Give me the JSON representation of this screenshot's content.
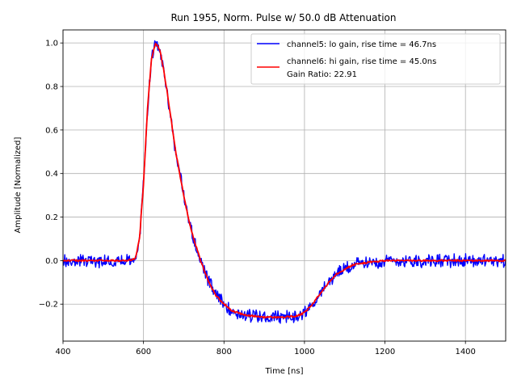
{
  "chart_data": {
    "type": "line",
    "title": "Run 1955, Norm. Pulse w/ 50.0 dB Attenuation",
    "xlabel": "Time [ns]",
    "ylabel": "Amplitude [Normalized]",
    "xlim": [
      400,
      1500
    ],
    "ylim": [
      -0.37,
      1.06
    ],
    "grid": true,
    "legend_position": "top-right",
    "x_ticks": [
      400,
      600,
      800,
      1000,
      1200,
      1400
    ],
    "x_tick_labels": [
      "400",
      "600",
      "800",
      "1000",
      "1200",
      "1400"
    ],
    "y_ticks": [
      -0.2,
      0.0,
      0.2,
      0.4,
      0.6,
      0.8,
      1.0
    ],
    "y_tick_labels": [
      "−0.2",
      "0.0",
      "0.2",
      "0.4",
      "0.6",
      "0.8",
      "1.0"
    ],
    "series": [
      {
        "name": "channel5",
        "label": "channel5: lo gain, rise time = 46.7ns",
        "color": "#0000ff",
        "noisy": true,
        "x": [
          400,
          500,
          560,
          580,
          590,
          600,
          610,
          620,
          630,
          640,
          650,
          660,
          670,
          680,
          690,
          700,
          710,
          720,
          740,
          760,
          780,
          800,
          820,
          850,
          900,
          950,
          980,
          1000,
          1020,
          1040,
          1060,
          1080,
          1100,
          1120,
          1150,
          1200,
          1300,
          1400,
          1500
        ],
        "y": [
          0.0,
          0.0,
          0.0,
          0.01,
          0.1,
          0.35,
          0.7,
          0.93,
          1.0,
          0.97,
          0.88,
          0.76,
          0.63,
          0.5,
          0.4,
          0.3,
          0.21,
          0.13,
          0.01,
          -0.09,
          -0.16,
          -0.2,
          -0.23,
          -0.25,
          -0.26,
          -0.26,
          -0.255,
          -0.24,
          -0.2,
          -0.15,
          -0.1,
          -0.06,
          -0.04,
          -0.02,
          -0.01,
          0.0,
          0.0,
          0.0,
          0.0
        ]
      },
      {
        "name": "channel6",
        "label": "channel6: hi gain, rise time = 45.0ns",
        "extra_label": "Gain Ratio: 22.91",
        "color": "#ff0000",
        "noisy": false,
        "x": [
          400,
          500,
          560,
          580,
          590,
          600,
          610,
          620,
          630,
          640,
          650,
          660,
          670,
          680,
          690,
          700,
          710,
          720,
          740,
          760,
          780,
          800,
          820,
          850,
          900,
          950,
          980,
          1000,
          1020,
          1040,
          1060,
          1080,
          1100,
          1120,
          1150,
          1200,
          1300,
          1400,
          1500
        ],
        "y": [
          0.0,
          0.0,
          0.0,
          0.01,
          0.1,
          0.35,
          0.7,
          0.93,
          1.0,
          0.97,
          0.88,
          0.76,
          0.63,
          0.5,
          0.4,
          0.3,
          0.21,
          0.13,
          0.01,
          -0.09,
          -0.16,
          -0.2,
          -0.23,
          -0.25,
          -0.26,
          -0.26,
          -0.255,
          -0.24,
          -0.2,
          -0.15,
          -0.1,
          -0.06,
          -0.04,
          -0.02,
          -0.01,
          0.0,
          0.0,
          0.0,
          0.0
        ]
      }
    ]
  }
}
